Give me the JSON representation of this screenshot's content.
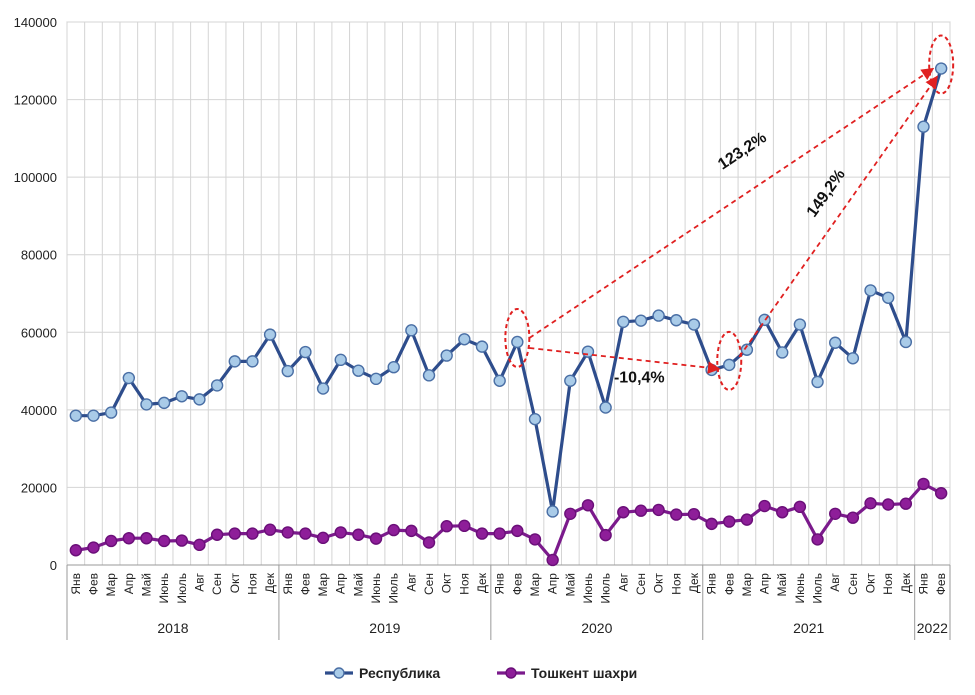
{
  "chart_data": {
    "type": "line",
    "title": "",
    "xlabel": "",
    "ylabel": "",
    "ylim": [
      0,
      140000
    ],
    "yticks": [
      0,
      20000,
      40000,
      60000,
      80000,
      100000,
      120000,
      140000
    ],
    "grid": true,
    "legend_position": "bottom",
    "months": [
      "Янв",
      "Фев",
      "Мар",
      "Апр",
      "Май",
      "Июнь",
      "Июль",
      "Авг",
      "Сен",
      "Окт",
      "Ноя",
      "Дек",
      "Янв",
      "Фев",
      "Мар",
      "Апр",
      "Май",
      "Июнь",
      "Июль",
      "Авг",
      "Сен",
      "Окт",
      "Ноя",
      "Дек",
      "Янв",
      "Фев",
      "Мар",
      "Апр",
      "Май",
      "Июнь",
      "Июль",
      "Авг",
      "Сен",
      "Окт",
      "Ноя",
      "Дек",
      "Янв",
      "Фев",
      "Мар",
      "Апр",
      "Май",
      "Июнь",
      "Июль",
      "Авг",
      "Сен",
      "Окт",
      "Ноя",
      "Дек",
      "Янв",
      "Фев"
    ],
    "years": [
      {
        "label": "2018",
        "start": 0,
        "end": 11
      },
      {
        "label": "2019",
        "start": 12,
        "end": 23
      },
      {
        "label": "2020",
        "start": 24,
        "end": 35
      },
      {
        "label": "2021",
        "start": 36,
        "end": 47
      },
      {
        "label": "2022",
        "start": 48,
        "end": 49
      }
    ],
    "series": [
      {
        "name": "Республика",
        "color": "#2E4D8C",
        "marker_fill": "#A9CBE8",
        "marker_stroke": "#4A6FA5",
        "values": [
          38500,
          38500,
          39300,
          48200,
          41400,
          41800,
          43500,
          42700,
          46300,
          52500,
          52500,
          59400,
          50000,
          54900,
          45500,
          52900,
          50100,
          48000,
          51000,
          60500,
          48900,
          54000,
          58200,
          56300,
          47500,
          57500,
          37600,
          13800,
          47500,
          55000,
          40600,
          62700,
          63000,
          64300,
          63100,
          62000,
          50300,
          51600,
          55500,
          63200,
          54800,
          62000,
          47200,
          57300,
          53300,
          70800,
          68900,
          57500,
          113000,
          128000
        ]
      },
      {
        "name": "Тошкент шахри",
        "color": "#7B1A8C",
        "marker_fill": "#8E1E99",
        "marker_stroke": "#6A0F78",
        "values": [
          3800,
          4500,
          6200,
          6900,
          6900,
          6200,
          6300,
          5200,
          7800,
          8100,
          8100,
          9100,
          8400,
          8100,
          7000,
          8400,
          7800,
          6800,
          9000,
          8800,
          5800,
          10000,
          10100,
          8100,
          8100,
          8800,
          6600,
          1300,
          13200,
          15400,
          7700,
          13600,
          14000,
          14200,
          13000,
          13100,
          10600,
          11200,
          11700,
          15200,
          13600,
          15000,
          6600,
          13200,
          12200,
          15900,
          15600,
          15800,
          20900,
          18500
        ]
      }
    ],
    "annotations": [
      {
        "text": "123,2%",
        "from_index": 25,
        "to_index": 49
      },
      {
        "text": "149,2%",
        "from_index": 37,
        "to_index": 49
      },
      {
        "text": "-10,4%",
        "from_index": 25,
        "to_index": 37
      }
    ],
    "highlight_indices": [
      25,
      37,
      49
    ]
  }
}
